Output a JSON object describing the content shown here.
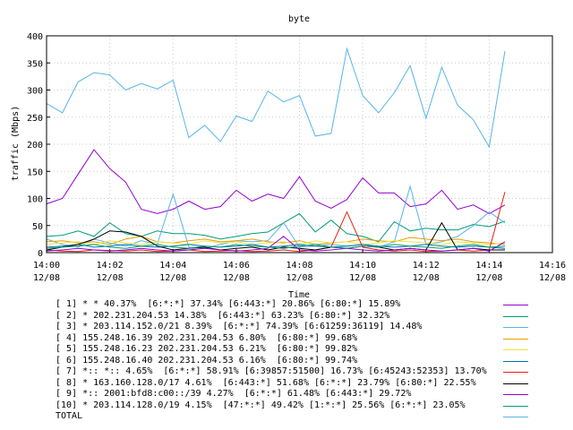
{
  "chart_data": {
    "type": "line",
    "title": "byte",
    "xlabel": "Time",
    "ylabel": "traffic (Mbps)",
    "ylim": [
      0,
      400
    ],
    "yticks": [
      "0",
      "50",
      "100",
      "150",
      "200",
      "250",
      "300",
      "350",
      "400"
    ],
    "xlim": [
      "14:00",
      "14:16"
    ],
    "xtick_labels": [
      {
        "time": "14:00",
        "date": "12/08"
      },
      {
        "time": "14:02",
        "date": "12/08"
      },
      {
        "time": "14:04",
        "date": "12/08"
      },
      {
        "time": "14:06",
        "date": "12/08"
      },
      {
        "time": "14:08",
        "date": "12/08"
      },
      {
        "time": "14:10",
        "date": "12/08"
      },
      {
        "time": "14:12",
        "date": "12/08"
      },
      {
        "time": "14:14",
        "date": "12/08"
      },
      {
        "time": "14:16",
        "date": "12/08"
      }
    ],
    "grid": true,
    "legend_placement": "below",
    "x": [
      "14:00:00",
      "14:00:30",
      "14:01:00",
      "14:01:30",
      "14:02:00",
      "14:02:30",
      "14:03:00",
      "14:03:30",
      "14:04:00",
      "14:04:30",
      "14:05:00",
      "14:05:30",
      "14:06:00",
      "14:06:30",
      "14:07:00",
      "14:07:30",
      "14:08:00",
      "14:08:30",
      "14:09:00",
      "14:09:30",
      "14:10:00",
      "14:10:30",
      "14:11:00",
      "14:11:30",
      "14:12:00",
      "14:12:30",
      "14:13:00",
      "14:13:30",
      "14:14:00",
      "14:14:30"
    ],
    "series": [
      {
        "name": "[ 1] * * 40.37%  [6:*:*] 37.34% [6:443:*] 20.86% [6:80:*] 15.89%",
        "color": "#9400d3",
        "values": [
          90,
          100,
          145,
          190,
          155,
          130,
          80,
          72,
          80,
          95,
          80,
          85,
          115,
          95,
          108,
          100,
          140,
          95,
          82,
          98,
          138,
          110,
          110,
          85,
          90,
          115,
          80,
          88,
          72,
          88
        ]
      },
      {
        "name": "[ 2] * 202.231.204.53 14.38%  [6:443:*] 63.23% [6:80:*] 32.32%",
        "color": "#009e73",
        "values": [
          30,
          32,
          40,
          30,
          55,
          35,
          30,
          40,
          35,
          35,
          32,
          25,
          30,
          35,
          38,
          55,
          72,
          38,
          60,
          35,
          30,
          20,
          57,
          40,
          45,
          42,
          42,
          52,
          48,
          58
        ]
      },
      {
        "name": "[ 3] * 203.114.152.0/21 8.39%  [6:*:*] 74.39% [6:61259:36119] 14.48%",
        "color": "#56b4e9",
        "values": [
          25,
          15,
          10,
          25,
          18,
          12,
          22,
          15,
          108,
          10,
          8,
          15,
          22,
          20,
          22,
          55,
          10,
          12,
          15,
          12,
          15,
          10,
          20,
          122,
          15,
          20,
          30,
          50,
          75,
          55
        ]
      },
      {
        "name": "[ 4] 155.248.16.39 202.231.204.53 6.80%  [6:80:*] 99.68%",
        "color": "#e69f00",
        "values": [
          20,
          22,
          18,
          20,
          15,
          25,
          30,
          20,
          18,
          22,
          25,
          20,
          22,
          25,
          20,
          18,
          22,
          15,
          18,
          20,
          25,
          22,
          20,
          28,
          25,
          22,
          25,
          20,
          18,
          15
        ]
      },
      {
        "name": "[ 5] 155.248.16.23 202.231.204.53 6.21%  [6:80:*] 99.82%",
        "color": "#f0e442",
        "values": [
          15,
          18,
          20,
          15,
          22,
          18,
          15,
          20,
          18,
          15,
          22,
          18,
          20,
          15,
          18,
          20,
          15,
          22,
          18,
          20,
          15,
          18,
          22,
          20,
          18,
          15,
          20,
          18,
          15,
          18
        ]
      },
      {
        "name": "[ 6] 155.248.16.40 202.231.204.53 6.16%  [6:80:*] 99.74%",
        "color": "#0072b2",
        "values": [
          10,
          12,
          15,
          10,
          12,
          15,
          12,
          10,
          12,
          15,
          12,
          10,
          12,
          15,
          10,
          12,
          15,
          12,
          10,
          12,
          15,
          12,
          10,
          12,
          15,
          12,
          10,
          12,
          10,
          8
        ]
      },
      {
        "name": "[ 7] *:: *:: 4.65%  [6:*:*] 58.91% [6:39857:51500] 16.73% [6:45243:52353] 13.70%",
        "color": "#e51e10",
        "values": [
          5,
          3,
          2,
          5,
          4,
          3,
          5,
          2,
          3,
          5,
          2,
          3,
          4,
          2,
          3,
          5,
          2,
          5,
          10,
          75,
          10,
          5,
          3,
          5,
          2,
          3,
          5,
          3,
          5,
          112
        ]
      },
      {
        "name": "[ 8] * 163.160.128.0/17 4.61%  [6:443:*] 51.68% [6:*:*] 23.79% [6:80:*] 22.55%",
        "color": "#000000",
        "values": [
          5,
          10,
          15,
          25,
          40,
          38,
          30,
          12,
          5,
          8,
          10,
          5,
          8,
          10,
          5,
          10,
          8,
          5,
          10,
          8,
          12,
          10,
          5,
          8,
          5,
          55,
          5,
          8,
          5,
          5
        ]
      },
      {
        "name": "[ 9] *:: 2001:bfd8:c00::/39 4.27%  [6:*:*] 61.48% [6:443:*] 29.72%",
        "color": "#9400d3",
        "values": [
          3,
          5,
          8,
          5,
          3,
          5,
          8,
          5,
          3,
          5,
          8,
          5,
          3,
          5,
          8,
          30,
          5,
          3,
          5,
          8,
          5,
          3,
          5,
          8,
          5,
          3,
          5,
          8,
          3,
          20
        ]
      },
      {
        "name": "[10] * 203.114.128.0/19 4.15%  [47:*:*] 49.42% [1:*:*] 25.56% [6:*:*] 23.05%",
        "color": "#009e73",
        "values": [
          8,
          10,
          12,
          15,
          10,
          8,
          12,
          15,
          10,
          8,
          12,
          10,
          15,
          12,
          10,
          8,
          12,
          15,
          10,
          8,
          12,
          10,
          15,
          12,
          10,
          8,
          12,
          15,
          10,
          12
        ]
      },
      {
        "name": "TOTAL",
        "color": "#56b4e9",
        "values": [
          275,
          258,
          315,
          332,
          328,
          300,
          312,
          302,
          318,
          212,
          235,
          205,
          252,
          242,
          298,
          278,
          290,
          215,
          220,
          376,
          290,
          258,
          295,
          345,
          248,
          342,
          272,
          245,
          195,
          372
        ]
      }
    ]
  }
}
